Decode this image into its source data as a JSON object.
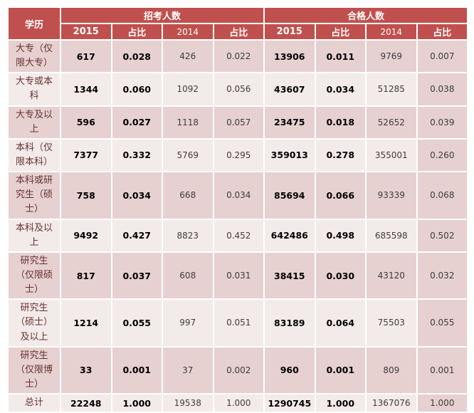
{
  "colors": {
    "header_bg": "#c0504d",
    "header_text": "#ffffff",
    "row_dark_bg": "#e6d0d0",
    "row_light_bg": "#f3ebea",
    "label_text": "#67302f",
    "grid_line": "#ffffff"
  },
  "table": {
    "corner_header": "学历",
    "group_headers": [
      "招考人数",
      "合格人数"
    ],
    "sub_headers": [
      "2015",
      "占比",
      "2014",
      "占比",
      "2015",
      "占比",
      "2014",
      "占比"
    ],
    "rows": [
      {
        "label": "大专（仅限大专）",
        "values": [
          "617",
          "0.028",
          "426",
          "0.022",
          "13906",
          "0.011",
          "9769",
          "0.007"
        ]
      },
      {
        "label": "大专或本科",
        "values": [
          "1344",
          "0.060",
          "1092",
          "0.056",
          "43607",
          "0.034",
          "51285",
          "0.038"
        ]
      },
      {
        "label": "大专及以上",
        "values": [
          "596",
          "0.027",
          "1118",
          "0.057",
          "23475",
          "0.018",
          "52652",
          "0.039"
        ]
      },
      {
        "label": "本科（仅限本科）",
        "values": [
          "7377",
          "0.332",
          "5769",
          "0.295",
          "359013",
          "0.278",
          "355001",
          "0.260"
        ]
      },
      {
        "label": "本科或研究生（硕士）",
        "values": [
          "758",
          "0.034",
          "668",
          "0.034",
          "85694",
          "0.066",
          "93339",
          "0.068"
        ]
      },
      {
        "label": "本科及以上",
        "values": [
          "9492",
          "0.427",
          "8823",
          "0.452",
          "642486",
          "0.498",
          "685598",
          "0.502"
        ]
      },
      {
        "label": "研究生（仅限硕士）",
        "values": [
          "817",
          "0.037",
          "608",
          "0.031",
          "38415",
          "0.030",
          "43120",
          "0.032"
        ]
      },
      {
        "label": "研究生（硕士）及以上",
        "values": [
          "1214",
          "0.055",
          "997",
          "0.051",
          "83189",
          "0.064",
          "75503",
          "0.055"
        ]
      },
      {
        "label": "研究生（仅限博士）",
        "values": [
          "33",
          "0.001",
          "37",
          "0.002",
          "960",
          "0.001",
          "809",
          "0.001"
        ]
      },
      {
        "label": "总计",
        "values": [
          "22248",
          "1.000",
          "19538",
          "1.000",
          "1290745",
          "1.000",
          "1367076",
          "1.000"
        ]
      }
    ]
  }
}
